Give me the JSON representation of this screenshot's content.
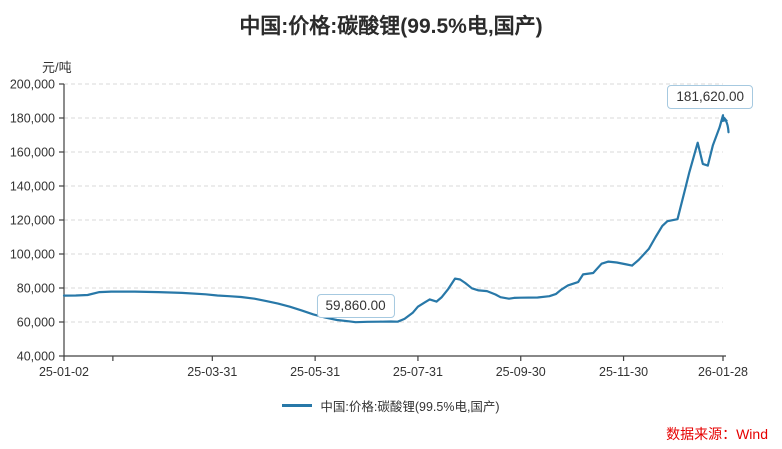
{
  "footer": {
    "source_label": "数据来源：Wind"
  },
  "chart_data": {
    "type": "line",
    "title": "中国:价格:碳酸锂(99.5%电,国产)",
    "ylabel": "元/吨",
    "xlabel": "",
    "ylim": [
      40000,
      200000
    ],
    "ytick_step": 20000,
    "grid": "horizontal-dashed",
    "legend_position": "bottom-center",
    "line_color": "#2878a8",
    "grid_color": "#d9d9d9",
    "axis_color": "#404040",
    "tick_label_color": "#333333",
    "callout_border_color": "#a6c9e0",
    "source_color": "#e60000",
    "xticks": [
      {
        "d": "25-01-02",
        "label": "25-01-02"
      },
      {
        "d": "25-01-31",
        "label": ""
      },
      {
        "d": "25-03-31",
        "label": "25-03-31"
      },
      {
        "d": "25-05-31",
        "label": "25-05-31"
      },
      {
        "d": "25-07-31",
        "label": "25-07-31"
      },
      {
        "d": "25-09-30",
        "label": "25-09-30"
      },
      {
        "d": "25-11-30",
        "label": "25-11-30"
      },
      {
        "d": "26-01-28",
        "label": "26-01-28"
      }
    ],
    "series": [
      {
        "name": "中国:价格:碳酸锂(99.5%电,国产)",
        "points": [
          [
            "25-01-02",
            75500
          ],
          [
            "25-01-09",
            75600
          ],
          [
            "25-01-16",
            75900
          ],
          [
            "25-01-23",
            77600
          ],
          [
            "25-01-30",
            77900
          ],
          [
            "25-02-13",
            77900
          ],
          [
            "25-02-27",
            77600
          ],
          [
            "25-03-13",
            77100
          ],
          [
            "25-03-27",
            76300
          ],
          [
            "25-04-03",
            75600
          ],
          [
            "25-04-10",
            75200
          ],
          [
            "25-04-17",
            74700
          ],
          [
            "25-04-25",
            73700
          ],
          [
            "25-05-02",
            72300
          ],
          [
            "25-05-09",
            70800
          ],
          [
            "25-05-16",
            69000
          ],
          [
            "25-05-23",
            66800
          ],
          [
            "25-05-30",
            64500
          ],
          [
            "25-06-06",
            62600
          ],
          [
            "25-06-13",
            61200
          ],
          [
            "25-06-20",
            60400
          ],
          [
            "25-06-24",
            59860
          ],
          [
            "25-07-01",
            60100
          ],
          [
            "25-07-08",
            60200
          ],
          [
            "25-07-15",
            60300
          ],
          [
            "25-07-19",
            60200
          ],
          [
            "25-07-23",
            61800
          ],
          [
            "25-07-28",
            65500
          ],
          [
            "25-07-31",
            69000
          ],
          [
            "25-08-04",
            71500
          ],
          [
            "25-08-07",
            73300
          ],
          [
            "25-08-11",
            72000
          ],
          [
            "25-08-14",
            74500
          ],
          [
            "25-08-18",
            79500
          ],
          [
            "25-08-22",
            85500
          ],
          [
            "25-08-25",
            85000
          ],
          [
            "25-08-28",
            83000
          ],
          [
            "25-09-01",
            79800
          ],
          [
            "25-09-05",
            78600
          ],
          [
            "25-09-10",
            78200
          ],
          [
            "25-09-15",
            76200
          ],
          [
            "25-09-18",
            74600
          ],
          [
            "25-09-23",
            73700
          ],
          [
            "25-09-26",
            74200
          ],
          [
            "25-09-30",
            74300
          ],
          [
            "25-10-10",
            74400
          ],
          [
            "25-10-17",
            75200
          ],
          [
            "25-10-21",
            76500
          ],
          [
            "25-10-24",
            79000
          ],
          [
            "25-10-28",
            81500
          ],
          [
            "25-11-03",
            83500
          ],
          [
            "25-11-06",
            88000
          ],
          [
            "25-11-12",
            88800
          ],
          [
            "25-11-17",
            94300
          ],
          [
            "25-11-21",
            95500
          ],
          [
            "25-11-26",
            95000
          ],
          [
            "25-12-02",
            93800
          ],
          [
            "25-12-05",
            93200
          ],
          [
            "25-12-09",
            96500
          ],
          [
            "25-12-15",
            103000
          ],
          [
            "25-12-19",
            110000
          ],
          [
            "25-12-23",
            116500
          ],
          [
            "25-12-26",
            119300
          ],
          [
            "26-01-01",
            120500
          ],
          [
            "26-01-05",
            136000
          ],
          [
            "26-01-08",
            148000
          ],
          [
            "26-01-13",
            165500
          ],
          [
            "26-01-16",
            153000
          ],
          [
            "26-01-19",
            152000
          ],
          [
            "26-01-22",
            164000
          ],
          [
            "26-01-26",
            174500
          ],
          [
            "26-01-28",
            181620
          ]
        ]
      }
    ],
    "annotations": {
      "min": {
        "text": "59,860.00",
        "date": "25-06-24",
        "value": 59860
      },
      "max": {
        "text": "181,620.00",
        "date": "26-01-28",
        "value": 181620
      }
    }
  }
}
